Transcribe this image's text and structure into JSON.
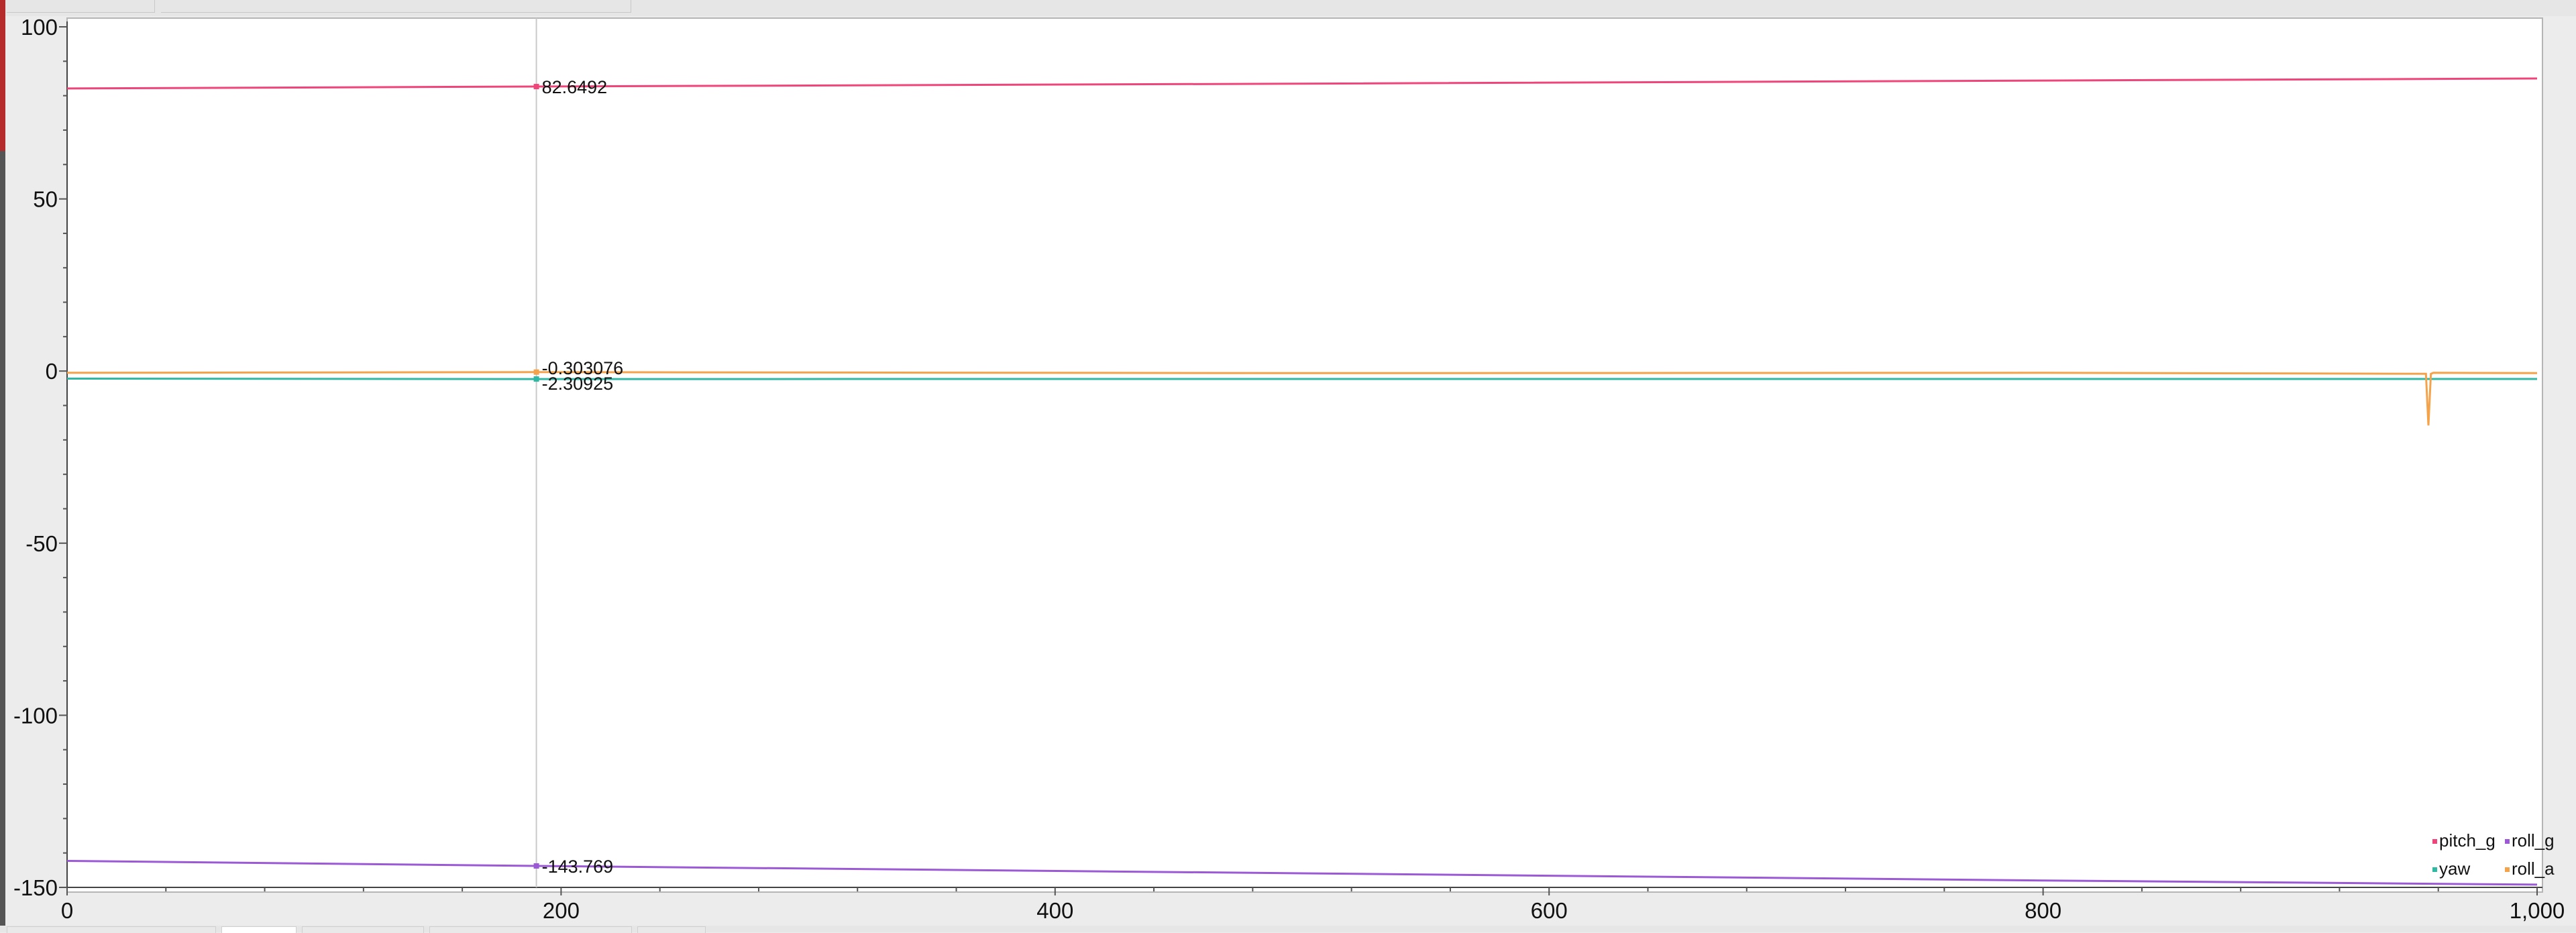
{
  "chart_data": {
    "type": "line",
    "title": "",
    "xlabel": "",
    "ylabel": "",
    "xlim": [
      0,
      1000
    ],
    "ylim": [
      -150,
      100
    ],
    "x_ticks": [
      0,
      200,
      400,
      600,
      800,
      1000
    ],
    "x_tick_labels": [
      "0",
      "200",
      "400",
      "600",
      "800",
      "1,000"
    ],
    "y_ticks": [
      100,
      50,
      0,
      -50,
      -100,
      -150
    ],
    "y_tick_labels": [
      "100",
      "50",
      "0",
      "-50",
      "-100",
      "-150"
    ],
    "grid": false,
    "legend_position": "bottom-right",
    "cursor": {
      "x": 190
    },
    "series": [
      {
        "name": "pitch_g",
        "color": "#f0457a",
        "x": [
          0,
          190,
          500,
          800,
          1000
        ],
        "values": [
          82.1,
          82.6492,
          83.5,
          84.4,
          85.0
        ],
        "cursor_value": 82.6492,
        "cursor_label": "82.6492"
      },
      {
        "name": "roll_g",
        "color": "#9b59d6",
        "x": [
          0,
          190,
          500,
          800,
          1000
        ],
        "values": [
          -142.3,
          -143.769,
          -145.9,
          -148.0,
          -149.2
        ],
        "cursor_value": -143.769,
        "cursor_label": "-143.769"
      },
      {
        "name": "yaw",
        "color": "#2fb8a3",
        "x": [
          0,
          190,
          500,
          800,
          1000
        ],
        "values": [
          -2.2,
          -2.30925,
          -2.3,
          -2.3,
          -2.3
        ],
        "cursor_value": -2.30925,
        "cursor_label": "-2.30925"
      },
      {
        "name": "roll_a",
        "color": "#f5a34b",
        "x": [
          0,
          190,
          500,
          800,
          955,
          956,
          957,
          958,
          1000
        ],
        "values": [
          -0.5,
          -0.303076,
          -0.6,
          -0.5,
          -0.8,
          -15.8,
          -0.8,
          -0.5,
          -0.6
        ],
        "cursor_value": -0.303076,
        "cursor_label": "-0.303076"
      }
    ]
  }
}
